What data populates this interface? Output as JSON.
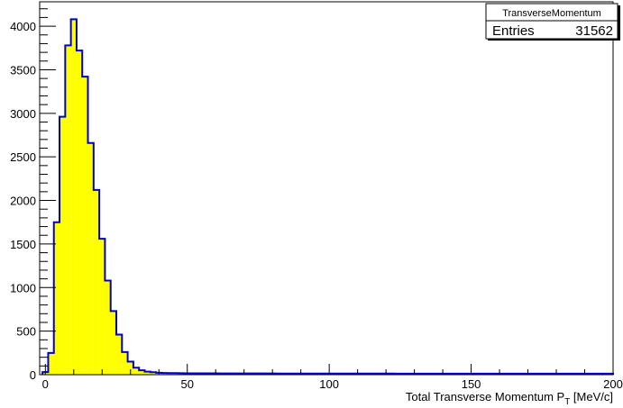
{
  "chart_data": {
    "type": "bar",
    "title": "",
    "xlabel_main": "Total Transverse Momentum P",
    "xlabel_sub": "T",
    "xlabel_unit": " [MeV/c]",
    "ylabel": "",
    "xlim": [
      -2,
      200
    ],
    "ylim": [
      0,
      4280
    ],
    "x_ticks": [
      0,
      50,
      100,
      150,
      200
    ],
    "y_ticks": [
      0,
      500,
      1000,
      1500,
      2000,
      2500,
      3000,
      3500,
      4000
    ],
    "bin_start": -1,
    "bin_width": 2,
    "values": [
      30,
      250,
      1750,
      2960,
      3780,
      4080,
      3720,
      3420,
      2660,
      2120,
      1560,
      1080,
      730,
      460,
      260,
      150,
      80,
      50,
      35,
      28,
      22,
      20,
      18,
      18,
      17,
      16,
      16,
      15,
      15,
      15,
      15,
      14,
      14,
      14,
      14,
      14,
      14,
      14,
      14,
      14,
      14,
      13,
      13,
      13,
      13,
      13,
      13,
      13,
      13,
      13,
      13,
      13,
      13,
      13,
      13,
      13,
      13,
      13,
      13,
      13,
      13,
      13,
      12,
      12,
      12,
      12,
      12,
      12,
      12,
      12,
      12,
      12,
      12,
      12,
      12,
      12,
      12,
      12,
      12,
      12,
      12,
      12,
      12,
      12,
      12,
      12,
      12,
      12,
      12,
      12,
      12,
      12,
      12,
      12,
      12,
      12,
      12,
      12,
      12,
      12,
      12
    ],
    "fill_color": "#ffff00",
    "line_color": "#0000cc",
    "grid": false,
    "legend": "none"
  },
  "stats_box": {
    "name": "TransverseMomentum",
    "entries_label": "Entries",
    "entries_value": "31562",
    "placement": "top-right"
  }
}
